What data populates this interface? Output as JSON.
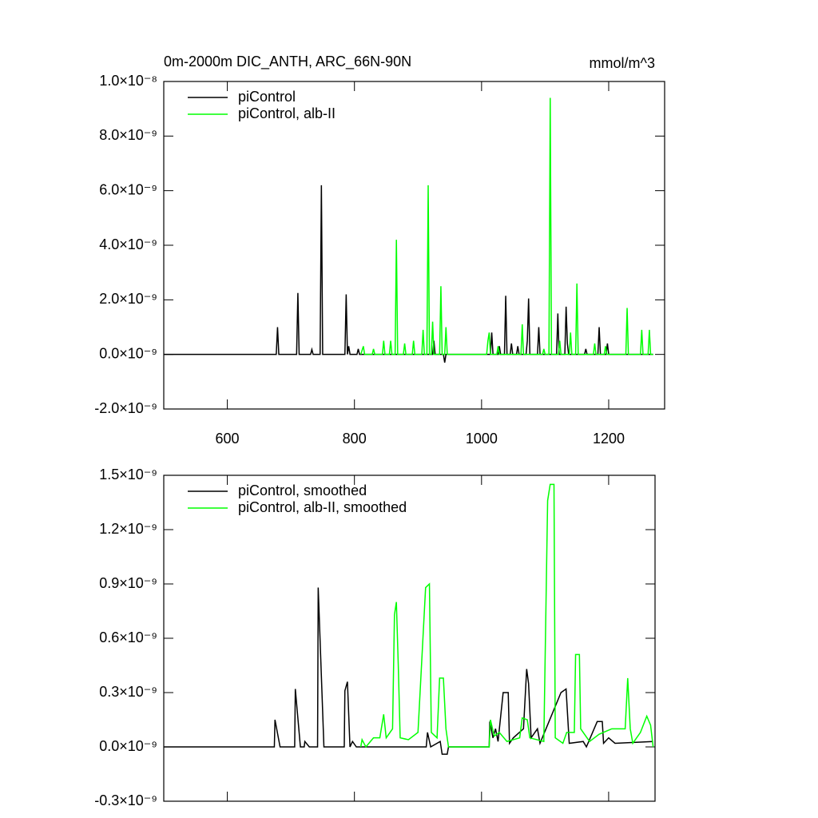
{
  "chart_data": [
    {
      "type": "line",
      "title": "0m-2000m DIC_ANTH, ARC_66N-90N",
      "units": "mmol/m^3",
      "xlim": [
        500,
        1288
      ],
      "xticks": [
        600,
        800,
        1000,
        1200
      ],
      "ylim": [
        -2e-09,
        1e-08
      ],
      "yticks": [
        {
          "value": -2e-09,
          "label": "-2.0×10⁻⁹"
        },
        {
          "value": 0,
          "label": "0.0×10⁻⁹"
        },
        {
          "value": 2e-09,
          "label": "2.0×10⁻⁹"
        },
        {
          "value": 4e-09,
          "label": "4.0×10⁻⁹"
        },
        {
          "value": 6e-09,
          "label": "6.0×10⁻⁹"
        },
        {
          "value": 8e-09,
          "label": "8.0×10⁻⁹"
        },
        {
          "value": 1e-08,
          "label": "1.0×10⁻⁸"
        }
      ],
      "legend": "upper left",
      "series": [
        {
          "name": "piControl",
          "color": "#000000",
          "x": [
            500,
            677,
            679,
            681,
            709,
            711,
            713,
            731,
            733,
            735,
            746,
            748,
            750,
            785,
            787,
            789,
            791,
            793,
            804,
            806,
            808,
            923,
            925,
            927,
            940,
            942,
            944,
            1014,
            1016,
            1018,
            1026,
            1028,
            1030,
            1036,
            1038,
            1040,
            1045,
            1047,
            1049,
            1055,
            1057,
            1059,
            1070,
            1072,
            1074,
            1076,
            1088,
            1090,
            1092,
            1118,
            1120,
            1122,
            1131,
            1133,
            1135,
            1137,
            1162,
            1164,
            1166,
            1183,
            1185,
            1187,
            1196,
            1198,
            1200,
            1270
          ],
          "values": [
            0,
            0,
            1e-09,
            0,
            0,
            2.25e-09,
            0,
            0,
            1.8e-10,
            0,
            0,
            6.2e-09,
            0,
            0,
            2.2e-09,
            0,
            3e-10,
            0,
            0,
            2e-10,
            0,
            0,
            5e-10,
            0,
            0,
            -3e-10,
            0,
            0,
            8e-10,
            0,
            0,
            3e-10,
            0,
            0,
            2.15e-09,
            0,
            0,
            4e-10,
            0,
            0,
            3e-10,
            0,
            0,
            5e-10,
            2.05e-09,
            0,
            0,
            1e-09,
            0,
            0,
            1.5e-09,
            0,
            0,
            1.75e-09,
            4e-10,
            0,
            0,
            2e-10,
            0,
            0,
            1e-09,
            0,
            0,
            4e-10,
            0,
            0
          ]
        },
        {
          "name": "piControl, alb-II",
          "color": "#00ff00",
          "x": [
            810,
            814,
            816,
            828,
            830,
            832,
            844,
            846,
            848,
            855,
            857,
            859,
            864,
            866,
            868,
            877,
            879,
            881,
            891,
            893,
            895,
            906,
            908,
            910,
            914,
            916,
            918,
            921,
            923,
            925,
            934,
            936,
            938,
            942,
            944,
            946,
            1008,
            1010,
            1012,
            1014,
            1024,
            1026,
            1028,
            1062,
            1064,
            1066,
            1096,
            1098,
            1100,
            1106,
            1108,
            1110,
            1121,
            1123,
            1125,
            1138,
            1140,
            1142,
            1148,
            1150,
            1152,
            1176,
            1178,
            1180,
            1193,
            1195,
            1197,
            1227,
            1229,
            1231,
            1250,
            1252,
            1254,
            1262,
            1264,
            1266,
            1270
          ],
          "values": [
            0,
            3e-10,
            0,
            0,
            2e-10,
            0,
            0,
            5e-10,
            0,
            0,
            5e-10,
            0,
            0,
            4.2e-09,
            0,
            0,
            4e-10,
            0,
            0,
            5e-10,
            0,
            0,
            9e-10,
            0,
            0,
            6.2e-09,
            0,
            0,
            1.2e-09,
            0,
            0,
            2.5e-09,
            0,
            0,
            1e-09,
            0,
            0,
            5e-10,
            8e-10,
            0,
            0,
            3e-10,
            0,
            0,
            1.1e-09,
            0,
            0,
            2e-10,
            0,
            0,
            9.4e-09,
            0,
            0,
            5e-10,
            0,
            0,
            8e-10,
            0,
            0,
            2.6e-09,
            0,
            0,
            4e-10,
            0,
            0,
            3e-10,
            0,
            0,
            1.7e-09,
            0,
            0,
            9e-10,
            0,
            0,
            9e-10,
            0,
            0
          ]
        }
      ]
    },
    {
      "type": "line",
      "xlim": [
        500,
        1273
      ],
      "xticks": [
        600,
        800,
        1000,
        1200
      ],
      "ylim": [
        -3e-10,
        1.5e-09
      ],
      "yticks": [
        {
          "value": -3e-10,
          "label": "-0.3×10⁻⁹"
        },
        {
          "value": 0,
          "label": "0.0×10⁻⁹"
        },
        {
          "value": 3e-10,
          "label": "0.3×10⁻⁹"
        },
        {
          "value": 6e-10,
          "label": "0.6×10⁻⁹"
        },
        {
          "value": 9e-10,
          "label": "0.9×10⁻⁹"
        },
        {
          "value": 1.2e-09,
          "label": "1.2×10⁻⁹"
        },
        {
          "value": 1.5e-09,
          "label": "1.5×10⁻⁹"
        }
      ],
      "legend": "upper left",
      "series": [
        {
          "name": "piControl, smoothed",
          "color": "#000000",
          "x": [
            500,
            674,
            675,
            683,
            706,
            707,
            715,
            721,
            722,
            729,
            742,
            743,
            752,
            784,
            785,
            789,
            793,
            797,
            803,
            913,
            915,
            920,
            935,
            938,
            946,
            948,
            1012,
            1013,
            1018,
            1022,
            1026,
            1034,
            1042,
            1044,
            1050,
            1066,
            1071,
            1074,
            1078,
            1088,
            1092,
            1125,
            1133,
            1138,
            1160,
            1165,
            1182,
            1190,
            1192,
            1200,
            1210,
            1270
          ],
          "values": [
            0,
            0,
            1.5e-10,
            0,
            0,
            3.2e-10,
            0,
            0,
            3e-11,
            0,
            0,
            8.8e-10,
            0,
            0,
            3.1e-10,
            3.6e-10,
            0,
            3e-11,
            0,
            0,
            8e-11,
            0,
            3e-11,
            -4e-11,
            -4e-11,
            0,
            0,
            1.4e-10,
            5e-11,
            1e-10,
            3e-11,
            3e-10,
            3e-10,
            2e-11,
            5e-11,
            1e-10,
            4.3e-10,
            3.5e-10,
            5e-11,
            1e-10,
            2e-11,
            3e-10,
            3.2e-10,
            2e-11,
            3e-11,
            0,
            1.4e-10,
            1.4e-10,
            2e-11,
            5e-11,
            2e-11,
            3e-11
          ]
        },
        {
          "name": "piControl, alb-II, smoothed",
          "color": "#00ff00",
          "x": [
            810,
            812,
            818,
            830,
            840,
            846,
            850,
            860,
            863,
            866,
            869,
            872,
            885,
            900,
            912,
            918,
            921,
            930,
            934,
            940,
            944,
            948,
            1012,
            1014,
            1020,
            1028,
            1040,
            1060,
            1064,
            1072,
            1076,
            1098,
            1104,
            1108,
            1114,
            1116,
            1128,
            1134,
            1146,
            1148,
            1154,
            1156,
            1170,
            1185,
            1205,
            1226,
            1230,
            1234,
            1238,
            1250,
            1260,
            1266,
            1270
          ],
          "values": [
            0,
            4e-11,
            0,
            5e-11,
            5e-11,
            1.8e-10,
            5e-11,
            1e-10,
            7.3e-10,
            8e-10,
            4.5e-10,
            5e-11,
            4e-11,
            8e-11,
            8.8e-10,
            9e-10,
            8e-11,
            5e-11,
            3.8e-10,
            3.8e-10,
            1e-10,
            0,
            0,
            1.5e-10,
            6e-11,
            8e-11,
            3e-11,
            5e-11,
            1.6e-10,
            1.5e-10,
            5e-11,
            3e-11,
            1.36e-09,
            1.45e-09,
            1.45e-09,
            5e-11,
            2e-11,
            8e-11,
            8e-11,
            5.1e-10,
            5.1e-10,
            1e-10,
            3e-11,
            7e-11,
            1e-10,
            1e-10,
            3.8e-10,
            1e-10,
            2e-11,
            8e-11,
            1.7e-10,
            1.2e-10,
            0
          ]
        }
      ]
    }
  ]
}
